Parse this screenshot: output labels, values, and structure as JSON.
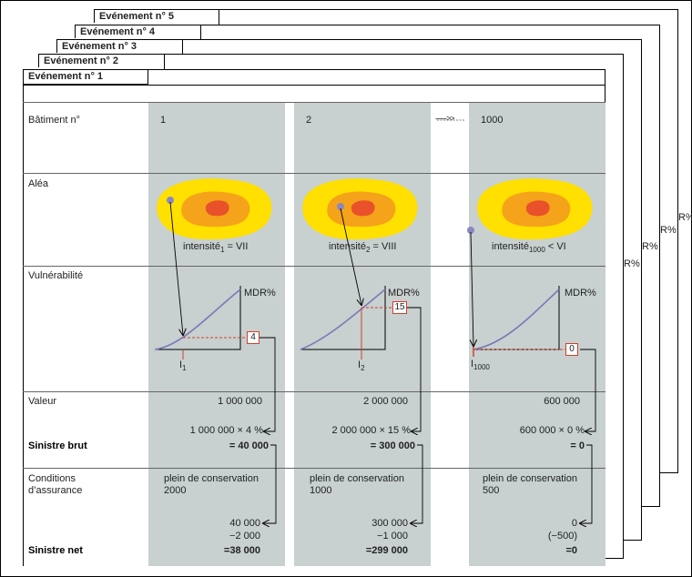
{
  "tabs": [
    "Evénement n° 5",
    "Evénement n° 4",
    "Evénement n° 3",
    "Evénement n° 2",
    "Evénement n° 1"
  ],
  "rows": {
    "batiment": "Bâtiment n°",
    "alea": "Aléa",
    "vulnerabilite": "Vulnérabilité",
    "valeur": "Valeur",
    "sinistre_brut": "Sinistre brut",
    "conditions_1": "Conditions",
    "conditions_2": "d’assurance",
    "sinistre_net": "Sinistre net"
  },
  "mdr_label": "MDR%",
  "behind_mdr": [
    "R%",
    "R%",
    "R%",
    "R%"
  ],
  "arrow_break": "------>>",
  "cols": [
    {
      "num": "1",
      "intensity_pre": "intensité",
      "intensity_sub": "1",
      "intensity_post": " = VII",
      "i_label": "I",
      "i_sub": "1",
      "mdr_value": "4",
      "valeur": "1 000 000",
      "calc": "1 000 000 × 4 %",
      "brut": "= 40 000",
      "cond_1": "plein de conservation",
      "cond_2": "2000",
      "net_a": "40 000",
      "net_b": "−2 000",
      "net": "=38 000"
    },
    {
      "num": "2",
      "intensity_pre": "intensité",
      "intensity_sub": "2",
      "intensity_post": " = VIII",
      "i_label": "I",
      "i_sub": "2",
      "mdr_value": "15",
      "valeur": "2 000 000",
      "calc": "2 000 000 × 15 %",
      "brut": "= 300 000",
      "cond_1": "plein de conservation",
      "cond_2": "1000",
      "net_a": "300 000",
      "net_b": "−1 000",
      "net": "=299 000"
    },
    {
      "num": "1000",
      "intensity_pre": "intensité",
      "intensity_sub": "1000",
      "intensity_post": " < VI",
      "i_label": "I",
      "i_sub": "1000",
      "mdr_value": "0",
      "valeur": "600 000",
      "calc": "600 000 × 0 %",
      "brut": "= 0",
      "cond_1": "plein de conservation",
      "cond_2": "500",
      "net_a": "0",
      "net_b": "(−500)",
      "net": "=0"
    }
  ],
  "colors": {
    "column_bg": "#c8d0d0",
    "hazard_outer": "#ffe000",
    "hazard_mid": "#f5a31a",
    "hazard_inner": "#e8512a",
    "curve": "#7b78b8",
    "dashed_red": "#d0402a",
    "point": "#8c86c0"
  }
}
